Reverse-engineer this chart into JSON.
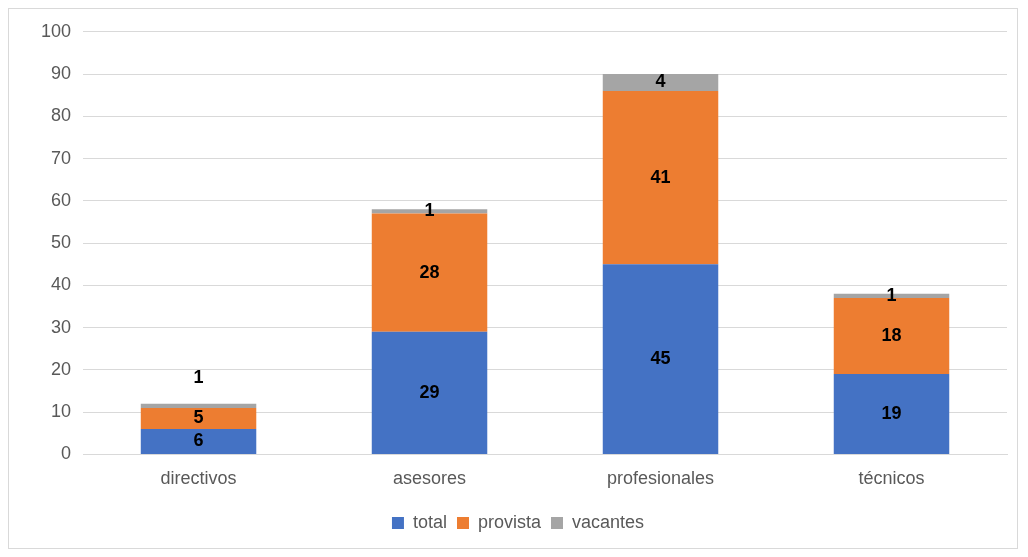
{
  "chart_data": {
    "type": "bar",
    "stacked": true,
    "categories": [
      "directivos",
      "asesores",
      "profesionales",
      "técnicos"
    ],
    "series": [
      {
        "name": "total",
        "color": "#4472c4",
        "values": [
          6,
          29,
          45,
          19
        ]
      },
      {
        "name": "provista",
        "color": "#ed7d31",
        "values": [
          5,
          28,
          41,
          18
        ]
      },
      {
        "name": "vacantes",
        "color": "#a5a5a5",
        "values": [
          1,
          1,
          4,
          1
        ]
      }
    ],
    "ylim": [
      0,
      100
    ],
    "yticks": [
      0,
      10,
      20,
      30,
      40,
      50,
      60,
      70,
      80,
      90,
      100
    ],
    "grid": "y",
    "legend": "bottom",
    "data_labels": true
  }
}
